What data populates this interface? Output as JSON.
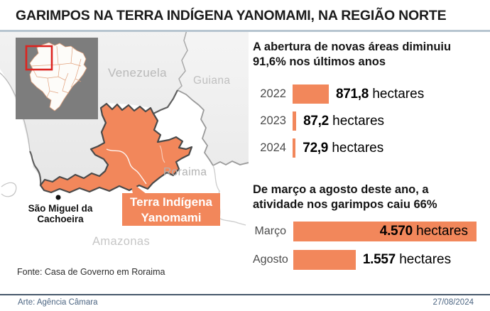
{
  "title": "GARIMPOS NA TERRA INDÍGENA YANOMAMI, NA REGIÃO NORTE",
  "map": {
    "country_labels": {
      "venezuela": "Venezuela",
      "guiana": "Guiana"
    },
    "state_labels": {
      "roraima": "Roraima",
      "amazonas": "Amazonas"
    },
    "city_label": "São Miguel da\nCachoeira",
    "territory_callout": "Terra Indígena\nYanomami"
  },
  "source": "Fonte: Casa de Governo em Roraima",
  "footer": {
    "credit": "Arte: Agência Câmara",
    "date": "27/08/2024"
  },
  "colors": {
    "accent_orange": "#F2875B",
    "territory_outline": "#4A4A4A",
    "locator_red": "#DD2420",
    "header_rule": "#B7C5D0",
    "footer_rule": "#46586B",
    "footer_text": "#4D6683",
    "map_label_gray": "#BABABA"
  },
  "chart_data": [
    {
      "type": "bar",
      "orientation": "horizontal",
      "title": "A abertura de novas áreas diminuiu\n91,6% nos últimos anos",
      "categories": [
        "2022",
        "2023",
        "2024"
      ],
      "values": [
        871.8,
        87.2,
        72.9
      ],
      "value_labels": [
        "871,8",
        "87,2",
        "72,9"
      ],
      "unit": "hectares",
      "xlim": [
        0,
        900
      ],
      "grid": false,
      "legend": false
    },
    {
      "type": "bar",
      "orientation": "horizontal",
      "title": "De março a agosto deste ano, a\natividade nos garimpos caiu 66%",
      "categories": [
        "Março",
        "Agosto"
      ],
      "values": [
        4570,
        1557
      ],
      "value_labels": [
        "4.570",
        "1.557"
      ],
      "unit": "hectares",
      "xlim": [
        0,
        4600
      ],
      "grid": false,
      "legend": false
    }
  ]
}
